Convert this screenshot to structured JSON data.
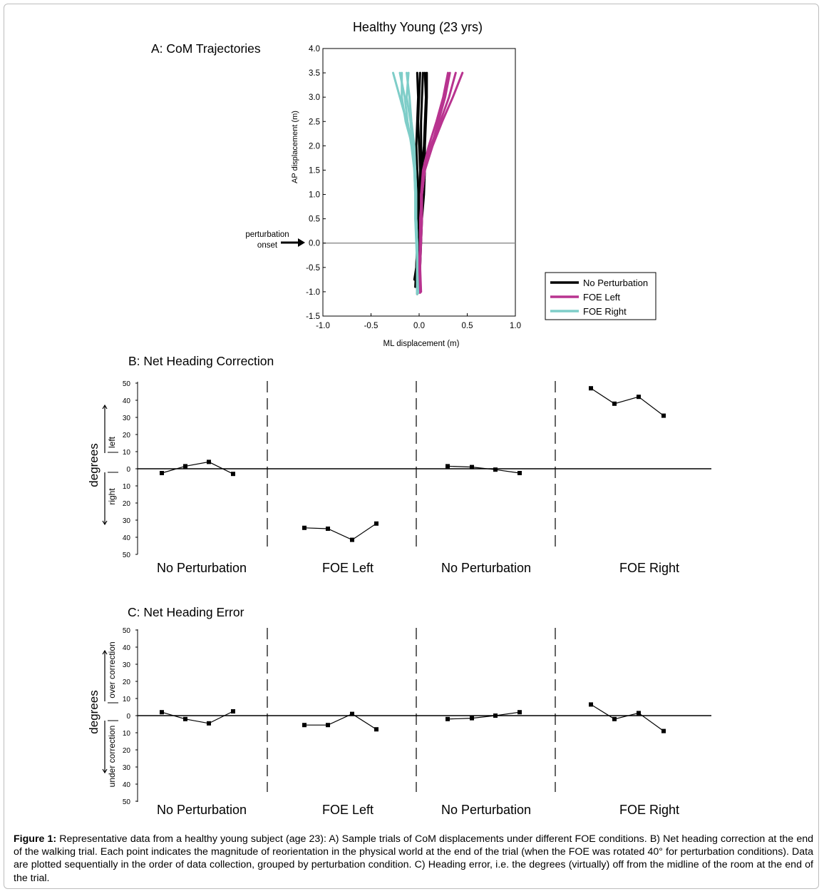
{
  "figure": {
    "main_title": "Healthy Young (23 yrs)"
  },
  "panel_a": {
    "title": "A: CoM Trajectories",
    "annotation": [
      "perturbation",
      "onset"
    ],
    "legend": [
      {
        "label": "No Perturbation",
        "color": "#000000"
      },
      {
        "label": "FOE Left",
        "color": "#b8338f"
      },
      {
        "label": "FOE Right",
        "color": "#7ecdc8"
      }
    ]
  },
  "panel_b": {
    "title": "B: Net Heading Correction",
    "ylabel": "degrees",
    "upper_label": "left",
    "lower_label": "right",
    "groups": [
      "No Perturbation",
      "FOE Left",
      "No Perturbation",
      "FOE Right"
    ]
  },
  "panel_c": {
    "title": "C: Net Heading Error",
    "ylabel": "degrees",
    "upper_label": "over correction",
    "lower_label": "under correction",
    "groups": [
      "No Perturbation",
      "FOE Left",
      "No Perturbation",
      "FOE Right"
    ]
  },
  "chart_data": [
    {
      "type": "line",
      "title": "A: CoM Trajectories",
      "xlabel": "ML displacement (m)",
      "ylabel": "AP displacement (m)",
      "xlim": [
        -1.0,
        1.0
      ],
      "ylim": [
        -1.5,
        4.0
      ],
      "xticks": [
        "-1.0",
        "-0.5",
        "0.0",
        "0.5",
        "1.0"
      ],
      "yticks": [
        "-1.5",
        "-1.0",
        "-0.5",
        "0.0",
        "0.5",
        "1.0",
        "1.5",
        "2.0",
        "2.5",
        "3.0",
        "3.5",
        "4.0"
      ],
      "reference_line_y": 0.0,
      "series": [
        {
          "name": "No Perturbation",
          "color": "#000000",
          "trials": [
            [
              [
                -0.02,
                -1.05
              ],
              [
                -0.02,
                -0.5
              ],
              [
                -0.01,
                0.0
              ],
              [
                0.0,
                0.5
              ],
              [
                0.02,
                1.0
              ],
              [
                0.03,
                1.5
              ],
              [
                0.02,
                2.0
              ],
              [
                0.02,
                2.5
              ],
              [
                0.03,
                3.0
              ],
              [
                0.04,
                3.5
              ]
            ],
            [
              [
                -0.04,
                -0.9
              ],
              [
                -0.03,
                -0.5
              ],
              [
                -0.02,
                0.0
              ],
              [
                -0.01,
                0.5
              ],
              [
                0.0,
                1.0
              ],
              [
                0.01,
                1.5
              ],
              [
                0.0,
                2.0
              ],
              [
                -0.01,
                2.5
              ],
              [
                0.0,
                3.0
              ],
              [
                0.01,
                3.5
              ]
            ],
            [
              [
                0.0,
                -1.0
              ],
              [
                0.01,
                -0.5
              ],
              [
                0.02,
                0.0
              ],
              [
                0.03,
                0.5
              ],
              [
                0.05,
                1.0
              ],
              [
                0.06,
                1.5
              ],
              [
                0.06,
                2.0
              ],
              [
                0.07,
                2.5
              ],
              [
                0.08,
                3.0
              ],
              [
                0.08,
                3.5
              ]
            ],
            [
              [
                -0.01,
                -1.02
              ],
              [
                -0.01,
                -0.5
              ],
              [
                0.0,
                0.0
              ],
              [
                0.01,
                0.5
              ],
              [
                0.02,
                1.0
              ],
              [
                0.03,
                1.5
              ],
              [
                0.05,
                2.0
              ],
              [
                0.06,
                2.5
              ],
              [
                0.07,
                3.0
              ],
              [
                0.06,
                3.5
              ]
            ],
            [
              [
                -0.05,
                -0.75
              ],
              [
                -0.03,
                -0.5
              ],
              [
                -0.02,
                0.0
              ],
              [
                -0.02,
                0.5
              ],
              [
                -0.01,
                1.0
              ],
              [
                -0.02,
                1.5
              ],
              [
                -0.03,
                2.0
              ],
              [
                -0.02,
                2.5
              ],
              [
                -0.01,
                3.0
              ],
              [
                -0.02,
                3.5
              ]
            ]
          ]
        },
        {
          "name": "FOE Left",
          "color": "#b8338f",
          "trials": [
            [
              [
                0.0,
                -1.02
              ],
              [
                0.0,
                -0.5
              ],
              [
                0.01,
                0.0
              ],
              [
                0.02,
                0.5
              ],
              [
                0.02,
                1.0
              ],
              [
                0.04,
                1.5
              ],
              [
                0.1,
                2.0
              ],
              [
                0.18,
                2.5
              ],
              [
                0.25,
                3.0
              ],
              [
                0.3,
                3.5
              ]
            ],
            [
              [
                0.02,
                -1.0
              ],
              [
                0.01,
                -0.5
              ],
              [
                0.02,
                0.0
              ],
              [
                0.03,
                0.5
              ],
              [
                0.03,
                1.0
              ],
              [
                0.06,
                1.5
              ],
              [
                0.14,
                2.0
              ],
              [
                0.24,
                2.5
              ],
              [
                0.35,
                3.0
              ],
              [
                0.45,
                3.5
              ]
            ],
            [
              [
                0.01,
                -1.02
              ],
              [
                0.0,
                -0.5
              ],
              [
                0.01,
                0.0
              ],
              [
                0.02,
                0.5
              ],
              [
                0.02,
                1.0
              ],
              [
                0.05,
                1.5
              ],
              [
                0.12,
                2.0
              ],
              [
                0.22,
                2.5
              ],
              [
                0.31,
                3.0
              ],
              [
                0.38,
                3.5
              ]
            ],
            [
              [
                0.0,
                -0.98
              ],
              [
                0.01,
                -0.5
              ],
              [
                0.01,
                0.0
              ],
              [
                0.01,
                0.5
              ],
              [
                0.03,
                1.0
              ],
              [
                0.06,
                1.5
              ],
              [
                0.13,
                2.0
              ],
              [
                0.2,
                2.5
              ],
              [
                0.27,
                3.0
              ],
              [
                0.32,
                3.5
              ]
            ]
          ]
        },
        {
          "name": "FOE Right",
          "color": "#7ecdc8",
          "trials": [
            [
              [
                -0.02,
                -1.05
              ],
              [
                -0.02,
                -0.5
              ],
              [
                -0.02,
                0.0
              ],
              [
                -0.03,
                0.5
              ],
              [
                -0.03,
                1.0
              ],
              [
                -0.04,
                1.5
              ],
              [
                -0.06,
                2.0
              ],
              [
                -0.13,
                2.5
              ],
              [
                -0.2,
                3.0
              ],
              [
                -0.27,
                3.5
              ]
            ],
            [
              [
                -0.02,
                -1.0
              ],
              [
                -0.02,
                -0.5
              ],
              [
                -0.03,
                0.0
              ],
              [
                -0.04,
                0.5
              ],
              [
                -0.04,
                1.0
              ],
              [
                -0.05,
                1.5
              ],
              [
                -0.08,
                2.0
              ],
              [
                -0.12,
                2.5
              ],
              [
                -0.15,
                3.0
              ],
              [
                -0.2,
                3.5
              ]
            ],
            [
              [
                -0.01,
                -1.02
              ],
              [
                -0.02,
                -0.5
              ],
              [
                -0.02,
                0.0
              ],
              [
                -0.03,
                0.5
              ],
              [
                -0.03,
                1.0
              ],
              [
                -0.04,
                1.5
              ],
              [
                -0.05,
                2.0
              ],
              [
                -0.08,
                2.5
              ],
              [
                -0.1,
                3.0
              ],
              [
                -0.13,
                3.5
              ]
            ],
            [
              [
                -0.02,
                -1.0
              ],
              [
                -0.02,
                -0.5
              ],
              [
                -0.02,
                0.0
              ],
              [
                -0.03,
                0.5
              ],
              [
                -0.04,
                1.0
              ],
              [
                -0.04,
                1.5
              ],
              [
                -0.07,
                2.0
              ],
              [
                -0.14,
                2.5
              ],
              [
                -0.18,
                3.0
              ],
              [
                -0.18,
                3.5
              ]
            ],
            [
              [
                -0.02,
                -1.02
              ],
              [
                -0.02,
                -0.5
              ],
              [
                -0.02,
                0.0
              ],
              [
                -0.04,
                0.5
              ],
              [
                -0.04,
                1.0
              ],
              [
                -0.05,
                1.5
              ],
              [
                -0.07,
                2.0
              ],
              [
                -0.09,
                2.5
              ],
              [
                -0.13,
                3.0
              ],
              [
                -0.11,
                3.5
              ]
            ]
          ]
        }
      ]
    },
    {
      "type": "line",
      "title": "B: Net Heading Correction",
      "ylabel": "degrees",
      "ylim": [
        -50,
        50
      ],
      "yticks": [
        "50",
        "40",
        "30",
        "20",
        "10",
        "0",
        "10",
        "20",
        "30",
        "40",
        "50"
      ],
      "groups": [
        {
          "name": "No Perturbation",
          "values": [
            -2.5,
            1.5,
            4,
            -3
          ]
        },
        {
          "name": "FOE Left",
          "values": [
            -34.5,
            -35,
            -41.5,
            -32
          ]
        },
        {
          "name": "No Perturbation",
          "values": [
            1.5,
            1,
            -0.5,
            -2.5
          ]
        },
        {
          "name": "FOE Right",
          "values": [
            47,
            38,
            42,
            31
          ]
        }
      ]
    },
    {
      "type": "line",
      "title": "C: Net Heading Error",
      "ylabel": "degrees",
      "ylim": [
        -50,
        50
      ],
      "yticks": [
        "50",
        "40",
        "30",
        "20",
        "10",
        "0",
        "10",
        "20",
        "30",
        "40",
        "50"
      ],
      "groups": [
        {
          "name": "No Perturbation",
          "values": [
            2,
            -2,
            -4.5,
            2.5
          ]
        },
        {
          "name": "FOE Left",
          "values": [
            -5.5,
            -5.5,
            1,
            -8
          ]
        },
        {
          "name": "No Perturbation",
          "values": [
            -2,
            -1.5,
            0,
            2
          ]
        },
        {
          "name": "FOE Right",
          "values": [
            6.5,
            -2,
            1.5,
            -9
          ]
        }
      ]
    }
  ],
  "caption": {
    "label": "Figure 1:",
    "text": " Representative data from a healthy young subject (age 23): A) Sample trials of CoM displacements under different FOE conditions. B) Net heading correction at the end of the walking trial. Each point indicates the magnitude of reorientation in the physical world at the end of the trial (when the FOE was rotated 40° for perturbation conditions). Data are plotted sequentially in the order of data collection, grouped by perturbation condition. C) Heading error, i.e. the degrees (virtually) off from the midline of the room at the end of the trial."
  }
}
